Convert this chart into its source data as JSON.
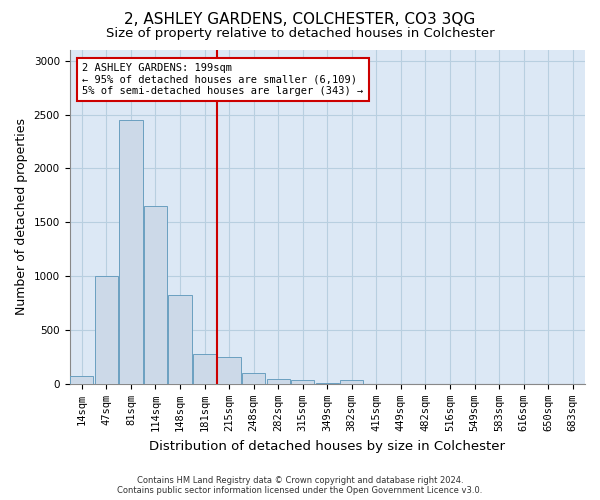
{
  "title": "2, ASHLEY GARDENS, COLCHESTER, CO3 3QG",
  "subtitle": "Size of property relative to detached houses in Colchester",
  "xlabel": "Distribution of detached houses by size in Colchester",
  "ylabel": "Number of detached properties",
  "footer_line1": "Contains HM Land Registry data © Crown copyright and database right 2024.",
  "footer_line2": "Contains public sector information licensed under the Open Government Licence v3.0.",
  "bar_labels": [
    "14sqm",
    "47sqm",
    "81sqm",
    "114sqm",
    "148sqm",
    "181sqm",
    "215sqm",
    "248sqm",
    "282sqm",
    "315sqm",
    "349sqm",
    "382sqm",
    "415sqm",
    "449sqm",
    "482sqm",
    "516sqm",
    "549sqm",
    "583sqm",
    "616sqm",
    "650sqm",
    "683sqm"
  ],
  "bar_values": [
    70,
    1000,
    2450,
    1650,
    830,
    280,
    250,
    100,
    50,
    35,
    5,
    35,
    0,
    0,
    0,
    0,
    0,
    0,
    0,
    0,
    0
  ],
  "bar_color": "#ccd9e8",
  "bar_edge_color": "#6a9fc0",
  "vline_x": 5.5,
  "vline_color": "#cc0000",
  "annotation_box_text": "2 ASHLEY GARDENS: 199sqm\n← 95% of detached houses are smaller (6,109)\n5% of semi-detached houses are larger (343) →",
  "ylim": [
    0,
    3100
  ],
  "yticks": [
    0,
    500,
    1000,
    1500,
    2000,
    2500,
    3000
  ],
  "grid_color": "#b8cfe0",
  "background_color": "#dce8f5",
  "title_fontsize": 11,
  "subtitle_fontsize": 9.5,
  "axis_label_fontsize": 9,
  "tick_fontsize": 7.5,
  "footer_fontsize": 6
}
